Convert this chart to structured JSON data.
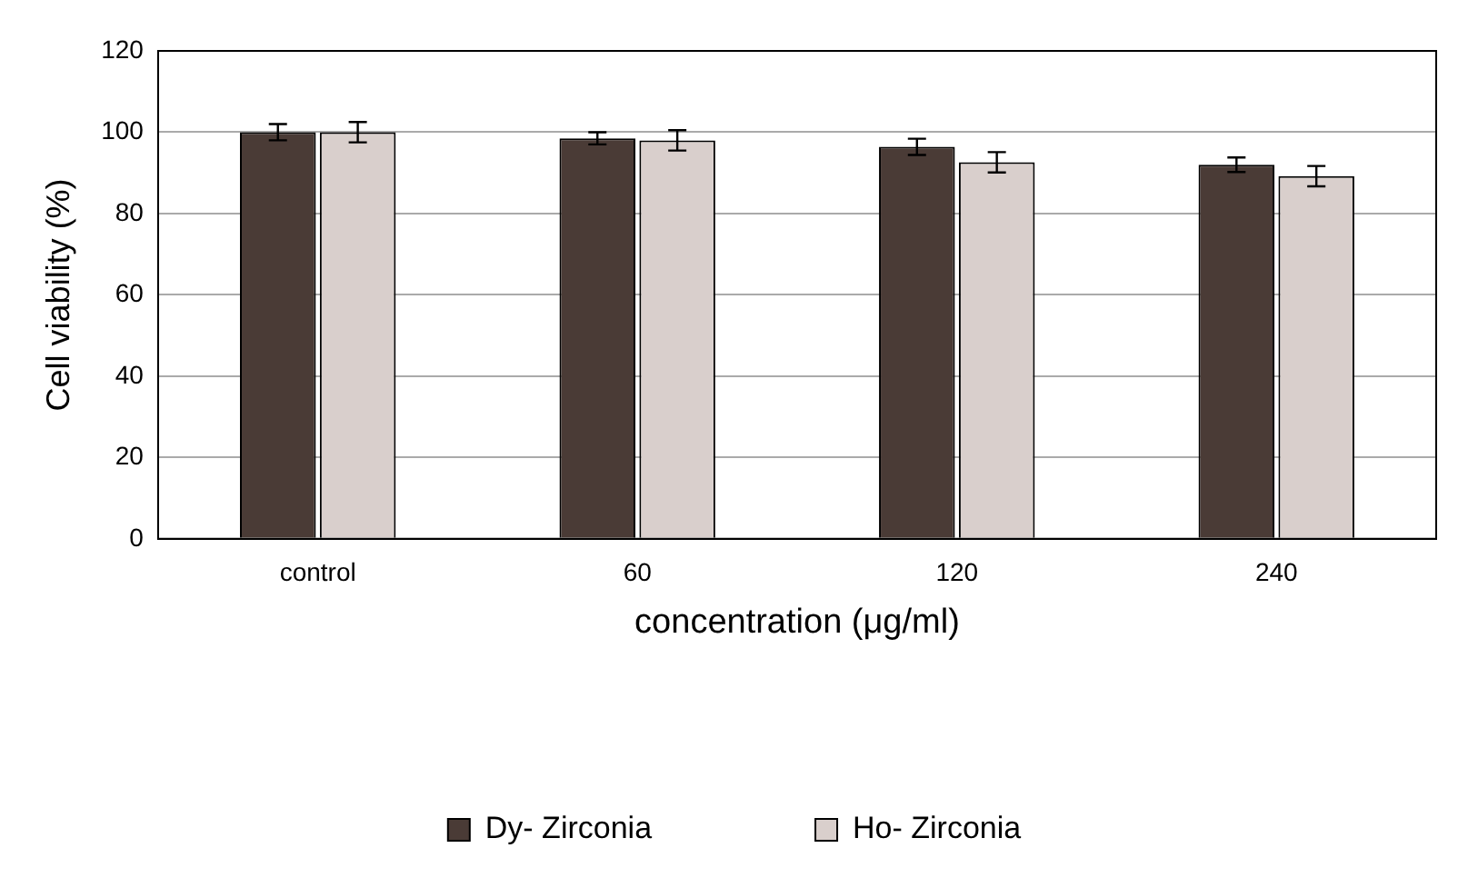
{
  "chart_data": {
    "type": "bar",
    "xlabel": "concentration (μg/ml)",
    "ylabel": "Cell viability (%)",
    "categories": [
      "control",
      "60",
      "120",
      "240"
    ],
    "series": [
      {
        "name": "Dy- Zirconia",
        "color": "#4a3b36",
        "values": [
          100,
          98.5,
          96.4,
          92
        ],
        "errors": [
          2,
          1.5,
          2,
          1.8
        ]
      },
      {
        "name": "Ho- Zirconia",
        "color": "#d9cfcc",
        "values": [
          100,
          98,
          92.6,
          89.2
        ],
        "errors": [
          2.5,
          2.5,
          2.5,
          2.5
        ]
      }
    ],
    "ylim": [
      0,
      120
    ],
    "yticks": [
      0,
      20,
      40,
      60,
      80,
      100,
      120
    ],
    "grid": "y",
    "legend": "bottom"
  }
}
